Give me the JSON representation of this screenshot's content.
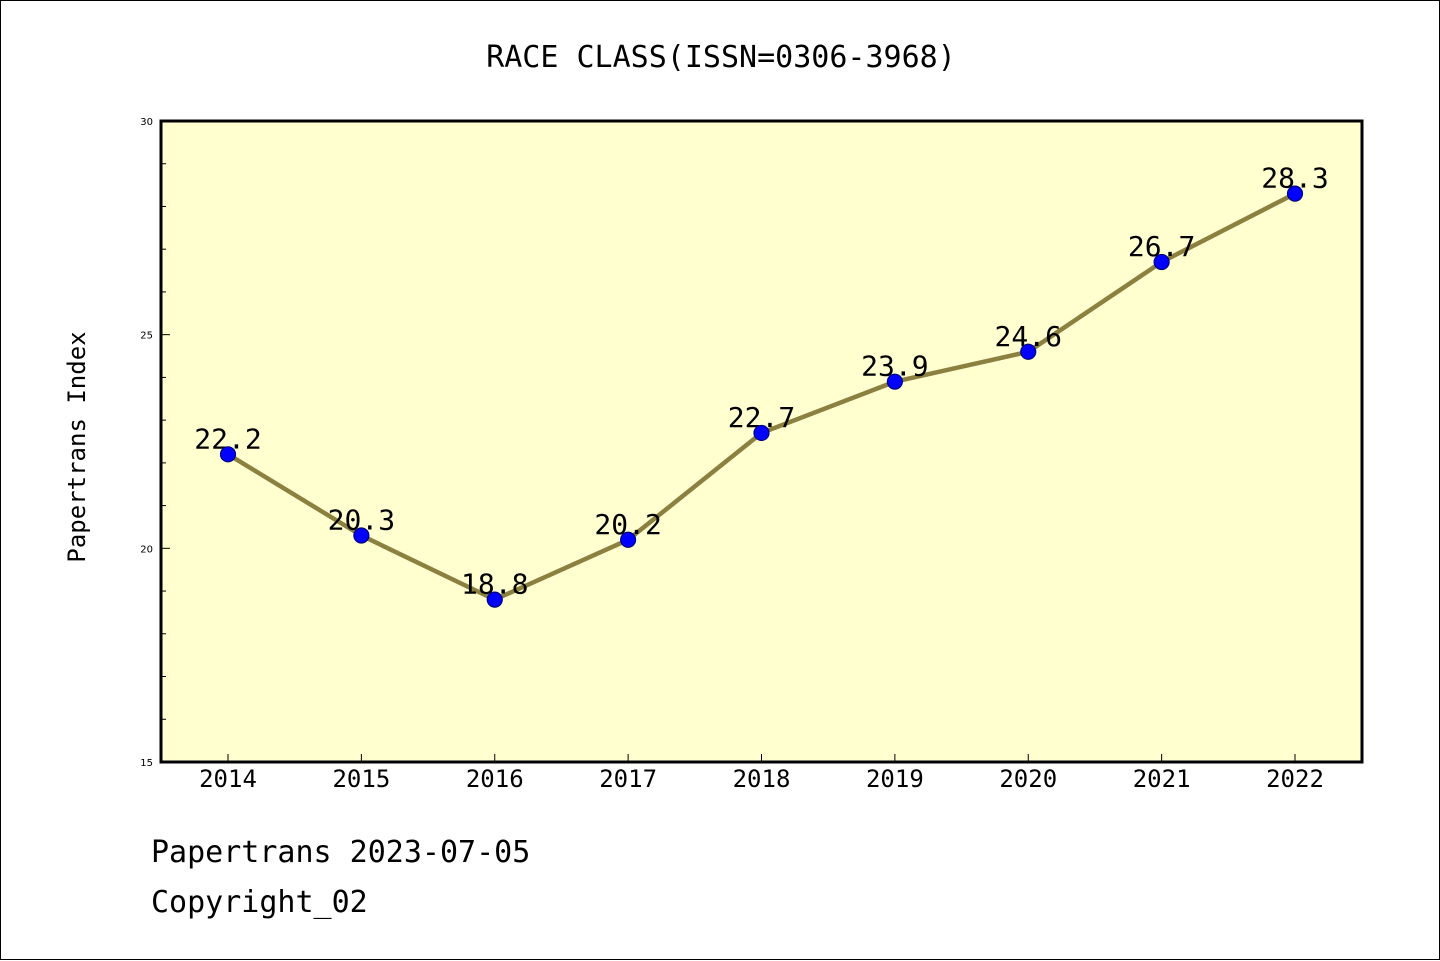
{
  "chart_data": {
    "type": "line",
    "title": "RACE CLASS(ISSN=0306-3968)",
    "xlabel": "",
    "ylabel": "Papertrans Index",
    "categories": [
      "2014",
      "2015",
      "2016",
      "2017",
      "2018",
      "2019",
      "2020",
      "2021",
      "2022"
    ],
    "series": [
      {
        "values": [
          22.2,
          20.3,
          18.8,
          20.2,
          22.7,
          23.9,
          24.6,
          26.7,
          28.3
        ],
        "data_labels": [
          "22.2",
          "20.3",
          "18.8",
          "20.2",
          "22.7",
          "23.9",
          "24.6",
          "26.7",
          "28.3"
        ]
      }
    ],
    "ylim": [
      15,
      30
    ],
    "yticks": [
      15,
      20,
      25,
      30
    ],
    "ytick_labels": [
      "15",
      "20",
      "25",
      "30"
    ],
    "y_minor_step": 1,
    "grid": false,
    "legend": "none",
    "colors": {
      "plot_background": "#ffffd0",
      "line": "#8b8040",
      "marker_fill": "#0000ff",
      "marker_edge": "#000080"
    }
  },
  "footer": {
    "line1": "Papertrans 2023-07-05",
    "line2": "Copyright_02"
  }
}
